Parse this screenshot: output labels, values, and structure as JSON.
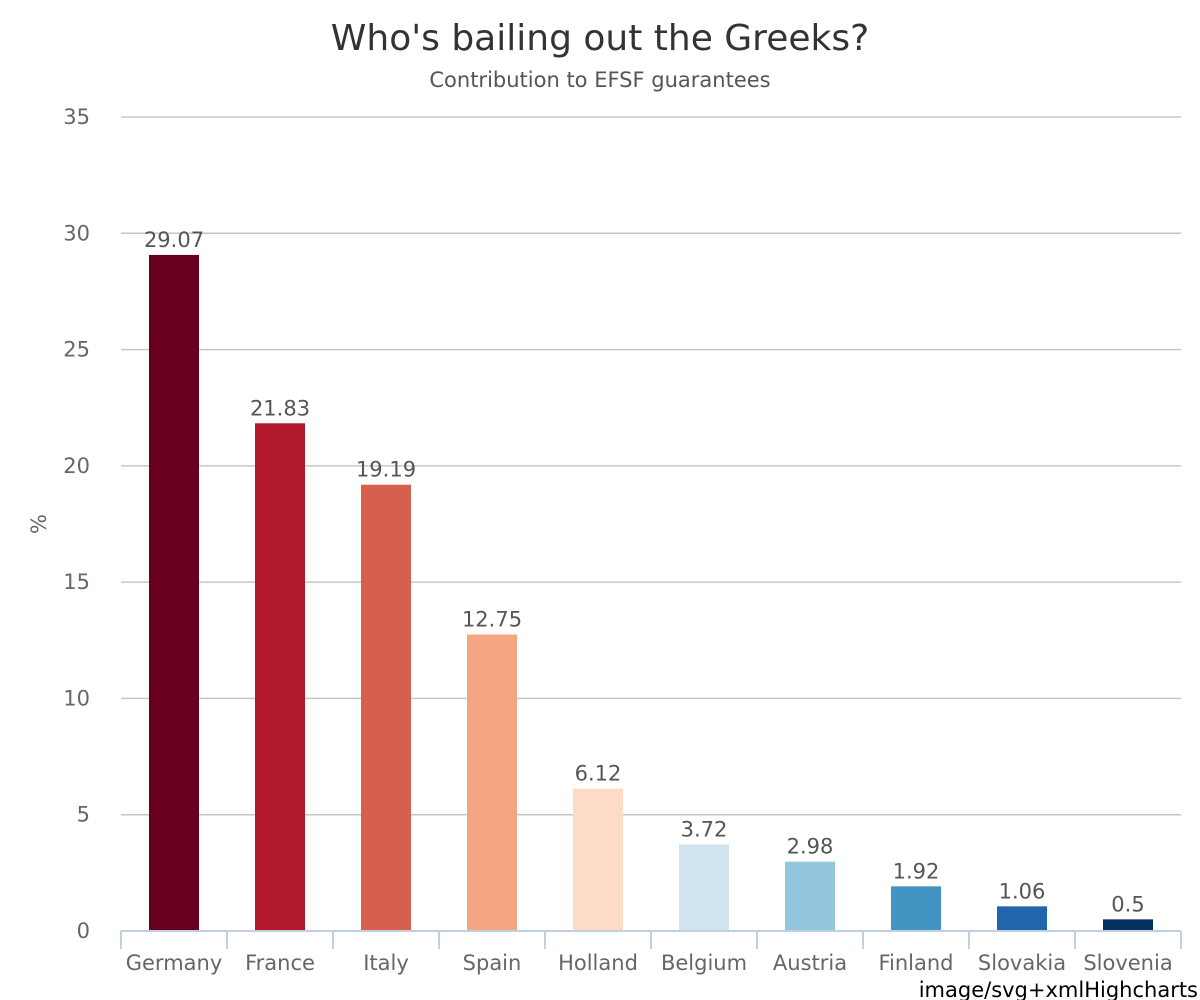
{
  "chart_data": {
    "type": "bar",
    "title": "Who's bailing out the Greeks?",
    "subtitle": "Contribution to EFSF guarantees",
    "ylabel": "%",
    "xlabel": "",
    "ylim": [
      0,
      35
    ],
    "yticks": [
      0,
      5,
      10,
      15,
      20,
      25,
      30,
      35
    ],
    "categories": [
      "Germany",
      "France",
      "Italy",
      "Spain",
      "Holland",
      "Belgium",
      "Austria",
      "Finland",
      "Slovakia",
      "Slovenia"
    ],
    "values": [
      29.07,
      21.83,
      19.19,
      12.75,
      6.12,
      3.72,
      2.98,
      1.92,
      1.06,
      0.5
    ],
    "data_labels": [
      "29.07",
      "21.83",
      "19.19",
      "12.75",
      "6.12",
      "3.72",
      "2.98",
      "1.92",
      "1.06",
      "0.5"
    ],
    "colors": [
      "#67001f",
      "#b2182b",
      "#d6604d",
      "#f4a582",
      "#fddbc7",
      "#d1e5f0",
      "#92c5de",
      "#4393c3",
      "#2166ac",
      "#053061"
    ],
    "grid": true,
    "legend": "none",
    "credit": "image/svg+xmlHighcharts"
  }
}
